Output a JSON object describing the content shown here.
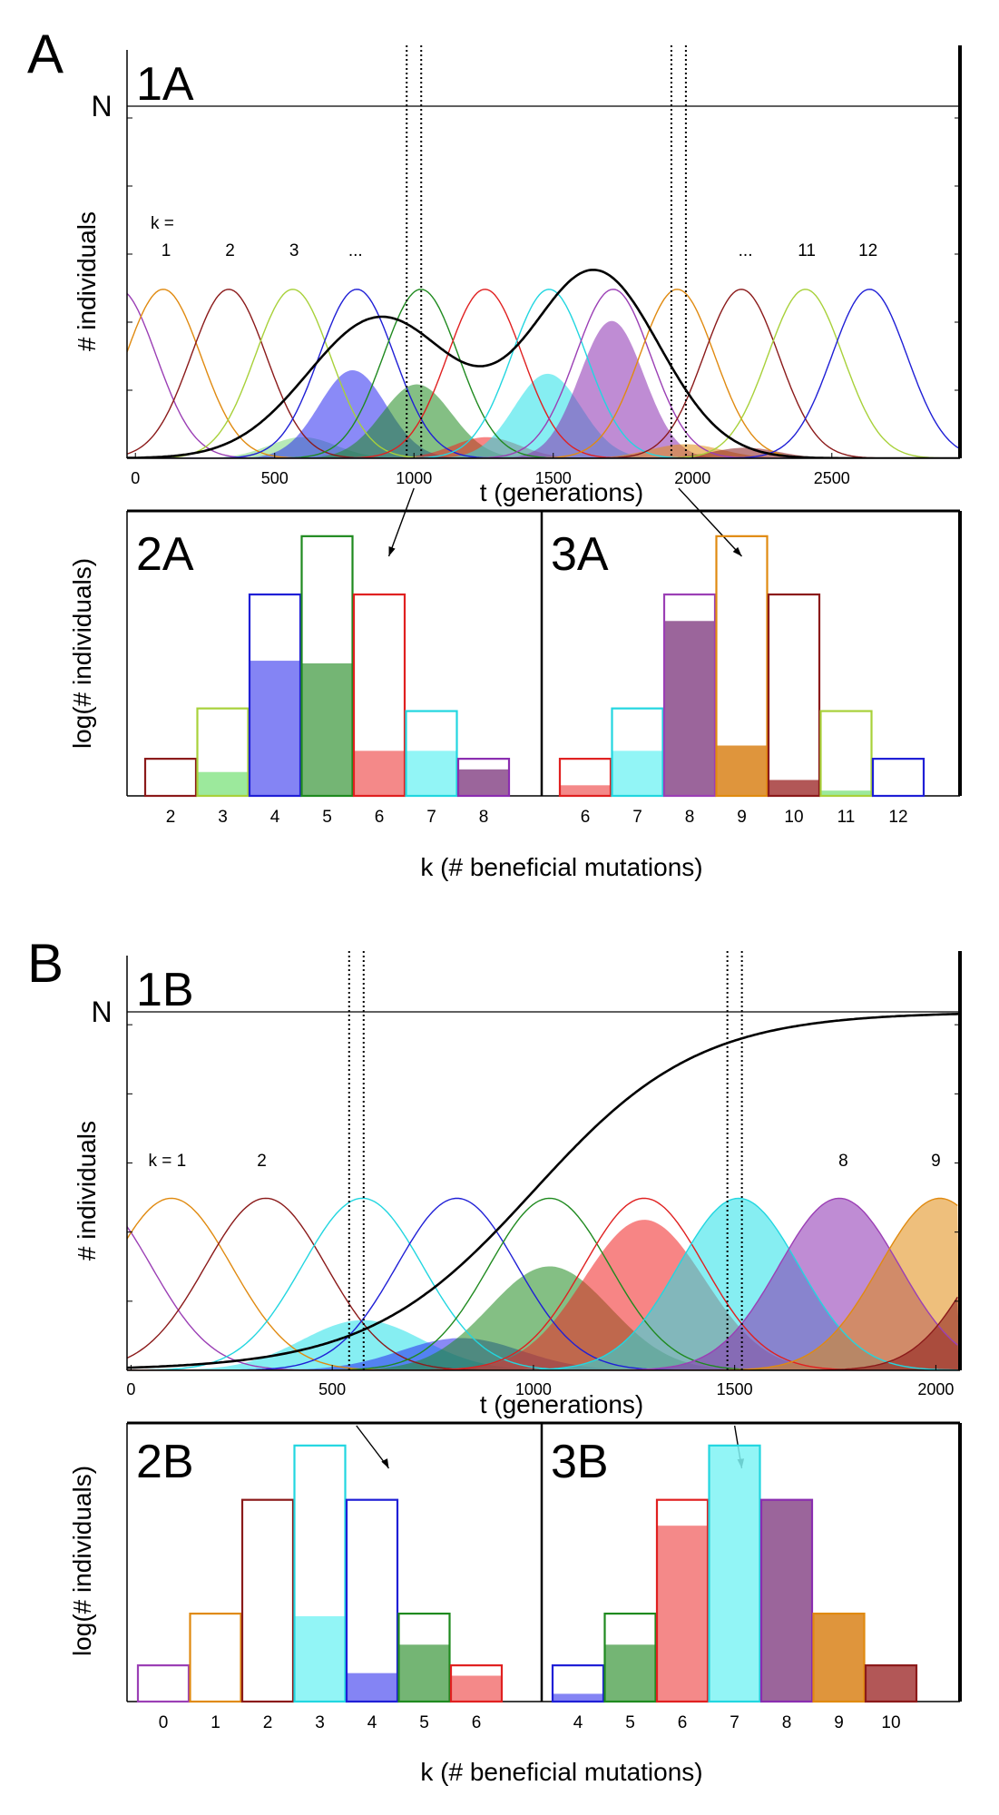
{
  "chart_data": [
    {
      "id": "A",
      "panel_letter": "A",
      "top": {
        "type": "line",
        "panel_label": "1A",
        "ylabel": "# individuals",
        "xlabel": "t (generations)",
        "n_label": "N",
        "xlim": [
          -30,
          2960
        ],
        "x_ticks": [
          0,
          500,
          1000,
          1500,
          2000,
          2500
        ],
        "k_label_prefix": "k =",
        "k_labels": [
          {
            "text": "1",
            "t": 110
          },
          {
            "text": "2",
            "t": 340
          },
          {
            "text": "3",
            "t": 570
          },
          {
            "text": "...",
            "t": 790
          },
          {
            "text": "...",
            "t": 2190
          },
          {
            "text": "11",
            "t": 2410
          },
          {
            "text": "12",
            "t": 2630
          }
        ],
        "outline_series": [
          {
            "k": 0,
            "center": -60,
            "sigma": 135,
            "height": 0.48,
            "color": "#9b3fb5"
          },
          {
            "k": 1,
            "center": 100,
            "sigma": 135,
            "height": 0.48,
            "color": "#e08a10"
          },
          {
            "k": 2,
            "center": 335,
            "sigma": 135,
            "height": 0.48,
            "color": "#8b1a1a"
          },
          {
            "k": 3,
            "center": 565,
            "sigma": 135,
            "height": 0.48,
            "color": "#a8d13a"
          },
          {
            "k": 4,
            "center": 795,
            "sigma": 135,
            "height": 0.48,
            "color": "#1f1fd6"
          },
          {
            "k": 5,
            "center": 1025,
            "sigma": 135,
            "height": 0.48,
            "color": "#1f8a1f"
          },
          {
            "k": 6,
            "center": 1255,
            "sigma": 135,
            "height": 0.48,
            "color": "#e02020"
          },
          {
            "k": 7,
            "center": 1485,
            "sigma": 135,
            "height": 0.48,
            "color": "#22d6e0"
          },
          {
            "k": 8,
            "center": 1715,
            "sigma": 135,
            "height": 0.48,
            "color": "#9b3fb5"
          },
          {
            "k": 9,
            "center": 1945,
            "sigma": 135,
            "height": 0.48,
            "color": "#e08a10"
          },
          {
            "k": 10,
            "center": 2175,
            "sigma": 135,
            "height": 0.48,
            "color": "#8b1a1a"
          },
          {
            "k": 11,
            "center": 2405,
            "sigma": 135,
            "height": 0.48,
            "color": "#a8d13a"
          },
          {
            "k": 12,
            "center": 2635,
            "sigma": 135,
            "height": 0.48,
            "color": "#1f1fd6"
          }
        ],
        "filled_series": [
          {
            "k": 3,
            "center": 600,
            "sigma": 120,
            "height": 0.06,
            "color": "#7bd97b"
          },
          {
            "k": 4,
            "center": 780,
            "sigma": 120,
            "height": 0.25,
            "color": "#2a2af0"
          },
          {
            "k": 5,
            "center": 1010,
            "sigma": 125,
            "height": 0.21,
            "color": "#1f8a1f"
          },
          {
            "k": 6,
            "center": 1260,
            "sigma": 120,
            "height": 0.06,
            "color": "#f02020"
          },
          {
            "k": 7,
            "center": 1480,
            "sigma": 120,
            "height": 0.24,
            "color": "#22e0e8"
          },
          {
            "k": 8,
            "center": 1710,
            "sigma": 115,
            "height": 0.39,
            "color": "#8a2db0"
          },
          {
            "k": 9,
            "center": 1975,
            "sigma": 130,
            "height": 0.04,
            "color": "#e08a10"
          },
          {
            "k": 10,
            "center": 2190,
            "sigma": 120,
            "height": 0.03,
            "color": "#8b1a1a"
          }
        ],
        "total": [
          {
            "center": 880,
            "sigma": 260,
            "height": 0.4
          },
          {
            "center": 1650,
            "sigma": 230,
            "height": 0.53
          }
        ],
        "snapshot_times": [
          1000,
          1950
        ]
      },
      "bottom": [
        {
          "type": "bar",
          "panel_label": "2A",
          "categories": [
            "2",
            "3",
            "4",
            "5",
            "6",
            "7",
            "8"
          ],
          "outline_values": [
            0.14,
            0.33,
            0.76,
            0.98,
            0.76,
            0.32,
            0.14
          ],
          "filled_values": [
            0.0,
            0.09,
            0.51,
            0.5,
            0.17,
            0.17,
            0.1
          ],
          "colors": [
            "#8b1a1a",
            "#a8d13a",
            "#1f1fd6",
            "#1f8a1f",
            "#e02020",
            "#22d6e0",
            "#8a2db0"
          ],
          "fill_colors": [
            "#8b1a1a",
            "#8be58b",
            "#6f6ff2",
            "#5ca85c",
            "#f27474",
            "#7ff3f5",
            "#8a4a8a"
          ]
        },
        {
          "type": "bar",
          "panel_label": "3A",
          "categories": [
            "6",
            "7",
            "8",
            "9",
            "10",
            "11",
            "12"
          ],
          "outline_values": [
            0.14,
            0.33,
            0.76,
            0.98,
            0.76,
            0.32,
            0.14
          ],
          "filled_values": [
            0.04,
            0.17,
            0.66,
            0.19,
            0.06,
            0.02,
            0.0
          ],
          "colors": [
            "#e02020",
            "#22d6e0",
            "#9b3fb5",
            "#e08a10",
            "#8b1a1a",
            "#a8d13a",
            "#1f1fd6"
          ],
          "fill_colors": [
            "#f27474",
            "#7ff3f5",
            "#8a4a8a",
            "#d9821a",
            "#a53a3a",
            "#8be58b",
            "#6f6ff2"
          ]
        }
      ],
      "bottom_ylabel": "log(# individuals)",
      "bottom_xlabel": "k (# beneficial mutations)"
    },
    {
      "id": "B",
      "panel_letter": "B",
      "top": {
        "type": "line",
        "panel_label": "1B",
        "ylabel": "# individuals",
        "xlabel": "t (generations)",
        "n_label": "N",
        "xlim": [
          -10,
          2060
        ],
        "x_ticks": [
          0,
          500,
          1000,
          1500,
          2000
        ],
        "k_label_prefix": "",
        "k_labels": [
          {
            "text": "k = 1",
            "t": 90
          },
          {
            "text": "2",
            "t": 325
          },
          {
            "text": "8",
            "t": 1770
          },
          {
            "text": "9",
            "t": 2000
          }
        ],
        "outline_series": [
          {
            "k": 0,
            "center": -100,
            "sigma": 150,
            "height": 0.48,
            "color": "#9b3fb5"
          },
          {
            "k": 1,
            "center": 100,
            "sigma": 150,
            "height": 0.48,
            "color": "#e08a10"
          },
          {
            "k": 2,
            "center": 335,
            "sigma": 150,
            "height": 0.48,
            "color": "#8b1a1a"
          },
          {
            "k": 3,
            "center": 575,
            "sigma": 150,
            "height": 0.48,
            "color": "#22d6e0"
          },
          {
            "k": 4,
            "center": 810,
            "sigma": 150,
            "height": 0.48,
            "color": "#1f1fd6"
          },
          {
            "k": 5,
            "center": 1040,
            "sigma": 150,
            "height": 0.48,
            "color": "#1f8a1f"
          },
          {
            "k": 6,
            "center": 1275,
            "sigma": 150,
            "height": 0.48,
            "color": "#e02020"
          },
          {
            "k": 7,
            "center": 1510,
            "sigma": 150,
            "height": 0.48,
            "color": "#22d6e0"
          },
          {
            "k": 8,
            "center": 1760,
            "sigma": 150,
            "height": 0.48,
            "color": "#9b3fb5"
          },
          {
            "k": 9,
            "center": 2010,
            "sigma": 150,
            "height": 0.48,
            "color": "#e08a10"
          },
          {
            "k": 10,
            "center": 2250,
            "sigma": 150,
            "height": 0.48,
            "color": "#8b1a1a"
          }
        ],
        "filled_series": [
          {
            "k": 3,
            "center": 575,
            "sigma": 150,
            "height": 0.14,
            "color": "#22e0e8"
          },
          {
            "k": 4,
            "center": 820,
            "sigma": 150,
            "height": 0.09,
            "color": "#2a2af0"
          },
          {
            "k": 5,
            "center": 1040,
            "sigma": 150,
            "height": 0.29,
            "color": "#1f8a1f"
          },
          {
            "k": 6,
            "center": 1275,
            "sigma": 150,
            "height": 0.42,
            "color": "#f02020"
          },
          {
            "k": 7,
            "center": 1510,
            "sigma": 150,
            "height": 0.48,
            "color": "#22e0e8"
          },
          {
            "k": 8,
            "center": 1760,
            "sigma": 150,
            "height": 0.48,
            "color": "#8a2db0"
          },
          {
            "k": 9,
            "center": 2010,
            "sigma": 150,
            "height": 0.48,
            "color": "#e08a10"
          },
          {
            "k": 10,
            "center": 2250,
            "sigma": 150,
            "height": 0.48,
            "color": "#8b1a1a"
          }
        ],
        "logistic": {
          "midpoint": 1000,
          "scale": 205,
          "ceiling": 1.0
        },
        "snapshot_times": [
          560,
          1500
        ]
      },
      "bottom": [
        {
          "type": "bar",
          "panel_label": "2B",
          "categories": [
            "0",
            "1",
            "2",
            "3",
            "4",
            "5",
            "6"
          ],
          "outline_values": [
            0.14,
            0.34,
            0.78,
            0.99,
            0.78,
            0.34,
            0.14
          ],
          "filled_values": [
            0.0,
            0.0,
            0.0,
            0.33,
            0.11,
            0.22,
            0.1
          ],
          "colors": [
            "#9b3fb5",
            "#e08a10",
            "#8b1a1a",
            "#22d6e0",
            "#1f1fd6",
            "#1f8a1f",
            "#e02020"
          ],
          "fill_colors": [
            "#9b3fb5",
            "#e08a10",
            "#8b1a1a",
            "#7ff3f5",
            "#6f6ff2",
            "#5ca85c",
            "#f27474"
          ]
        },
        {
          "type": "bar",
          "panel_label": "3B",
          "categories": [
            "4",
            "5",
            "6",
            "7",
            "8",
            "9",
            "10"
          ],
          "outline_values": [
            0.14,
            0.34,
            0.78,
            0.99,
            0.78,
            0.34,
            0.14
          ],
          "filled_values": [
            0.03,
            0.22,
            0.68,
            0.99,
            0.78,
            0.34,
            0.14
          ],
          "colors": [
            "#1f1fd6",
            "#1f8a1f",
            "#e02020",
            "#22d6e0",
            "#8a2db0",
            "#e08a10",
            "#8b1a1a"
          ],
          "fill_colors": [
            "#6f6ff2",
            "#5ca85c",
            "#f27474",
            "#7ff3f5",
            "#8a4a8a",
            "#d9821a",
            "#a53a3a"
          ]
        }
      ],
      "bottom_ylabel": "log(# individuals)",
      "bottom_xlabel": "k (# beneficial mutations)"
    }
  ]
}
